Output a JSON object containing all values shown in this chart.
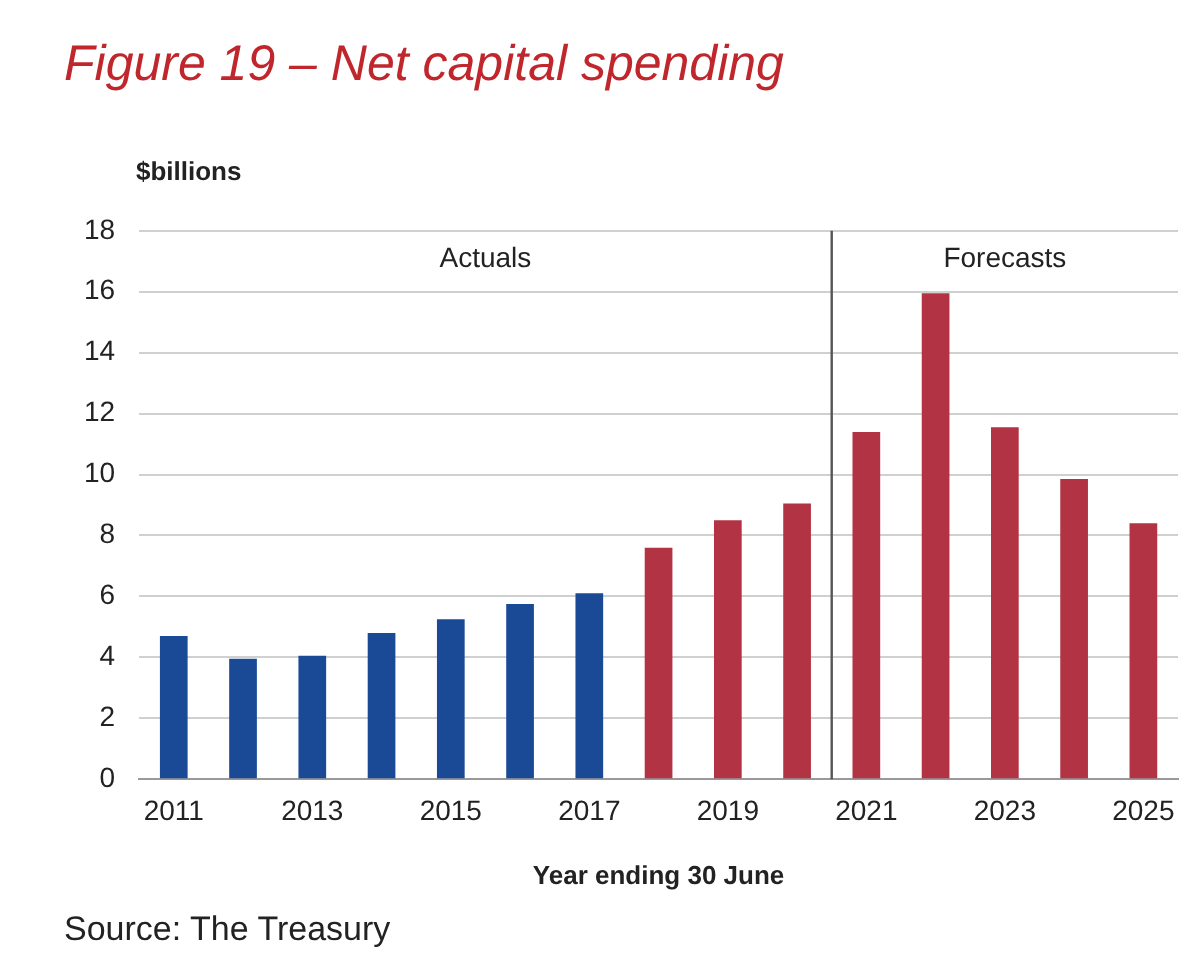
{
  "chart_data": {
    "type": "bar",
    "title": "Figure 19 – Net capital spending",
    "ylabel": "$billions",
    "xlabel": "Year ending 30 June",
    "x": [
      2011,
      2012,
      2013,
      2014,
      2015,
      2016,
      2017,
      2018,
      2019,
      2020,
      2021,
      2022,
      2023,
      2024,
      2025
    ],
    "values": [
      4.7,
      3.95,
      4.05,
      4.8,
      5.25,
      5.75,
      6.1,
      7.6,
      8.5,
      9.05,
      11.4,
      15.95,
      11.55,
      9.85,
      8.4
    ],
    "colors": [
      "#1a4a96",
      "#1a4a96",
      "#1a4a96",
      "#1a4a96",
      "#1a4a96",
      "#1a4a96",
      "#1a4a96",
      "#b23343",
      "#b23343",
      "#b23343",
      "#b23343",
      "#b23343",
      "#b23343",
      "#b23343",
      "#b23343"
    ],
    "xlim": [
      2010.5,
      2025.5
    ],
    "xticks": [
      2011,
      2013,
      2015,
      2017,
      2019,
      2021,
      2023,
      2025
    ],
    "ylim": [
      0,
      18
    ],
    "yticks": [
      0,
      2,
      4,
      6,
      8,
      10,
      12,
      14,
      16,
      18
    ],
    "grid": "y",
    "ref_lines": [
      {
        "axis": "x",
        "value": 2020.5,
        "color": "#555555"
      }
    ],
    "annotations": [
      "Actuals",
      "Forecasts",
      "Source: The Treasury"
    ]
  }
}
